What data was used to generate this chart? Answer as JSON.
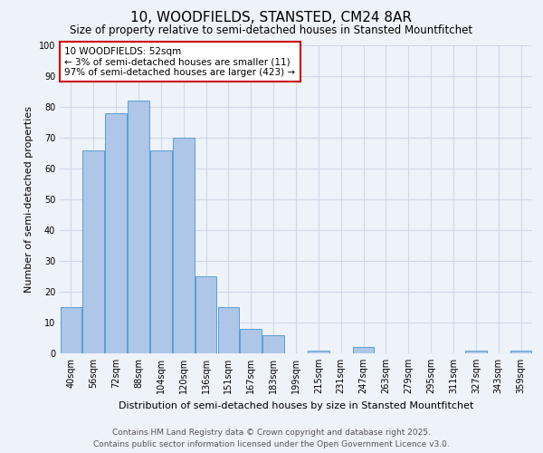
{
  "title": "10, WOODFIELDS, STANSTED, CM24 8AR",
  "subtitle": "Size of property relative to semi-detached houses in Stansted Mountfitchet",
  "xlabel": "Distribution of semi-detached houses by size in Stansted Mountfitchet",
  "ylabel": "Number of semi-detached properties",
  "footer": "Contains HM Land Registry data © Crown copyright and database right 2025.\nContains public sector information licensed under the Open Government Licence v3.0.",
  "annotation_title": "10 WOODFIELDS: 52sqm",
  "annotation_line1": "← 3% of semi-detached houses are smaller (11)",
  "annotation_line2": "97% of semi-detached houses are larger (423) →",
  "categories": [
    "40sqm",
    "56sqm",
    "72sqm",
    "88sqm",
    "104sqm",
    "120sqm",
    "136sqm",
    "151sqm",
    "167sqm",
    "183sqm",
    "199sqm",
    "215sqm",
    "231sqm",
    "247sqm",
    "263sqm",
    "279sqm",
    "295sqm",
    "311sqm",
    "327sqm",
    "343sqm",
    "359sqm"
  ],
  "values": [
    15,
    66,
    78,
    82,
    66,
    70,
    25,
    15,
    8,
    6,
    0,
    1,
    0,
    2,
    0,
    0,
    0,
    0,
    1,
    0,
    1
  ],
  "bar_color": "#aec6e8",
  "bar_edge_color": "#5a9fd4",
  "background_color": "#eef2f9",
  "grid_color": "#d0d8e8",
  "ylim": [
    0,
    100
  ],
  "yticks": [
    0,
    10,
    20,
    30,
    40,
    50,
    60,
    70,
    80,
    90,
    100
  ],
  "annotation_box_color": "#ffffff",
  "annotation_box_edge": "#cc0000",
  "title_fontsize": 11,
  "subtitle_fontsize": 8.5,
  "axis_label_fontsize": 8,
  "tick_fontsize": 7,
  "annotation_fontsize": 7.5,
  "footer_fontsize": 6.5
}
